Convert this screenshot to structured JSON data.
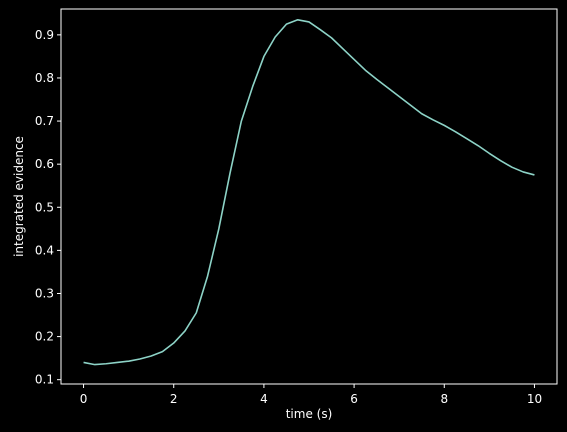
{
  "chart_data": {
    "type": "line",
    "xlabel": "time (s)",
    "ylabel": "integrated evidence",
    "xlim": [
      -0.5,
      10.5
    ],
    "ylim": [
      0.09,
      0.96
    ],
    "xticks": [
      0,
      2,
      4,
      6,
      8,
      10
    ],
    "xtick_labels": [
      "0",
      "2",
      "4",
      "6",
      "8",
      "10"
    ],
    "yticks": [
      0.1,
      0.2,
      0.3,
      0.4,
      0.5,
      0.6,
      0.7,
      0.8,
      0.9
    ],
    "ytick_labels": [
      "0.1",
      "0.2",
      "0.3",
      "0.4",
      "0.5",
      "0.6",
      "0.7",
      "0.8",
      "0.9"
    ],
    "grid": false,
    "series": [
      {
        "color": "#8dd3c7",
        "x": [
          0,
          0.25,
          0.5,
          0.75,
          1.0,
          1.25,
          1.5,
          1.75,
          2.0,
          2.25,
          2.5,
          2.75,
          3.0,
          3.25,
          3.5,
          3.75,
          4.0,
          4.25,
          4.5,
          4.75,
          5.0,
          5.25,
          5.5,
          5.75,
          6.0,
          6.25,
          6.5,
          6.75,
          7.0,
          7.25,
          7.5,
          7.75,
          8.0,
          8.25,
          8.5,
          8.75,
          9.0,
          9.25,
          9.5,
          9.75,
          10.0
        ],
        "y": [
          0.14,
          0.135,
          0.137,
          0.14,
          0.143,
          0.148,
          0.155,
          0.165,
          0.185,
          0.213,
          0.255,
          0.34,
          0.45,
          0.58,
          0.7,
          0.78,
          0.85,
          0.895,
          0.925,
          0.935,
          0.93,
          0.912,
          0.893,
          0.868,
          0.843,
          0.818,
          0.797,
          0.777,
          0.757,
          0.737,
          0.717,
          0.703,
          0.69,
          0.675,
          0.659,
          0.643,
          0.625,
          0.608,
          0.593,
          0.582,
          0.575
        ]
      }
    ]
  }
}
